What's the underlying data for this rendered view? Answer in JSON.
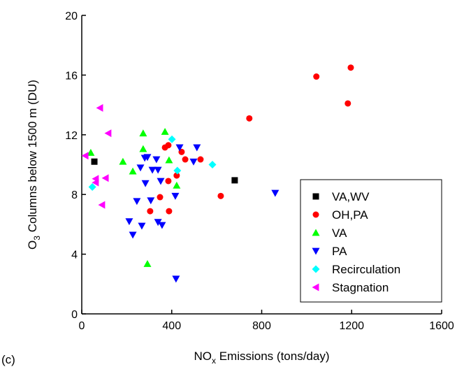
{
  "chart_data": {
    "type": "scatter",
    "xlabel": [
      "NO",
      "x",
      " Emissions (tons/day)"
    ],
    "ylabel": [
      "O",
      "3",
      " Columns below 1500 m (DU)"
    ],
    "annotation": "(c)",
    "xlim": [
      0,
      1600
    ],
    "xticks": [
      0,
      400,
      800,
      1200,
      1600
    ],
    "ylim": [
      0,
      20
    ],
    "yticks": [
      0,
      4,
      8,
      12,
      16,
      20
    ],
    "legend": "lower right",
    "series": [
      {
        "name": "VA,WV",
        "color": "#000000",
        "marker": "square",
        "x": [
          56,
          680
        ],
        "y": [
          10.2,
          8.95
        ]
      },
      {
        "name": "OH,PA",
        "color": "#ff0000",
        "marker": "circle",
        "x": [
          1043,
          1196,
          1183,
          745,
          618,
          370,
          385,
          444,
          460,
          528,
          422,
          385,
          348,
          388,
          304
        ],
        "y": [
          15.9,
          16.5,
          14.1,
          13.1,
          7.9,
          11.15,
          11.3,
          10.85,
          10.35,
          10.35,
          9.27,
          8.9,
          7.82,
          6.88,
          6.88
        ]
      },
      {
        "name": "VA",
        "color": "#00ff00",
        "marker": "triangle-up",
        "x": [
          40,
          183,
          273,
          370,
          273,
          388,
          227,
          422,
          292
        ],
        "y": [
          10.8,
          10.2,
          12.1,
          12.2,
          11.05,
          10.3,
          9.55,
          8.6,
          3.35
        ]
      },
      {
        "name": "PA",
        "color": "#0000ff",
        "marker": "triangle-down",
        "x": [
          261,
          280,
          292,
          314,
          339,
          332,
          283,
          245,
          307,
          211,
          267,
          227,
          339,
          357,
          416,
          435,
          497,
          512,
          860,
          419,
          351
        ],
        "y": [
          9.8,
          10.45,
          10.5,
          9.65,
          9.65,
          10.35,
          8.75,
          7.55,
          7.6,
          6.2,
          5.9,
          5.3,
          6.15,
          5.95,
          7.9,
          11.15,
          10.2,
          11.15,
          8.1,
          2.35,
          8.9
        ]
      },
      {
        "name": "Recirculation",
        "color": "#00ffff",
        "marker": "diamond",
        "x": [
          47,
          401,
          425,
          581
        ],
        "y": [
          8.5,
          11.7,
          9.6,
          10.0
        ]
      },
      {
        "name": "Stagnation",
        "color": "#ff00ff",
        "marker": "triangle-left",
        "x": [
          81,
          118,
          16,
          62,
          62,
          106,
          90
        ],
        "y": [
          13.8,
          12.1,
          10.6,
          9.05,
          8.8,
          9.1,
          7.3
        ]
      }
    ]
  }
}
